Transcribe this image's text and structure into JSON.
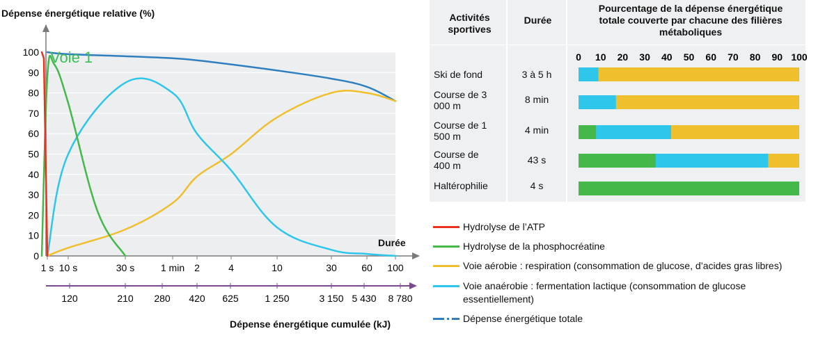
{
  "chart_data": [
    {
      "type": "line",
      "title": "",
      "ylabel": "Dépense énergétique relative (%)",
      "xlabel": "Durée",
      "x2label": "Dépense énergétique cumulée (kJ)",
      "ylim": [
        0,
        100
      ],
      "yticks": [
        "0",
        "10",
        "20",
        "30",
        "40",
        "50",
        "60",
        "70",
        "80",
        "90",
        "100"
      ],
      "xticks": [
        "1 s",
        "10 s",
        "30 s",
        "1 min",
        "2",
        "4",
        "10",
        "30",
        "60",
        "100"
      ],
      "x2ticks": [
        "120",
        "210",
        "280",
        "420",
        "625",
        "1 250",
        "3 150",
        "5 430",
        "8 780"
      ],
      "annotation": "Voie 1",
      "grid": true,
      "series": [
        {
          "name": "Hydrolyse de l’ATP",
          "color": "#e8321e",
          "x": [
            "0",
            "0.5 s",
            "1 s"
          ],
          "values": [
            100,
            97,
            0
          ]
        },
        {
          "name": "Hydrolyse de la phosphocréatine",
          "color": "#45b84a",
          "x": [
            "0",
            "1 s",
            "5 s",
            "10 s",
            "20 s",
            "30 s"
          ],
          "values": [
            0,
            88,
            94,
            75,
            22,
            0
          ]
        },
        {
          "name": "Voie aérobie : respiration (consommation de glucose, d’acides gras libres)",
          "color": "#f0bf2e",
          "x": [
            "1 s",
            "10 s",
            "30 s",
            "1 min",
            "2",
            "4",
            "10",
            "30",
            "60",
            "100"
          ],
          "values": [
            0,
            4,
            13,
            26,
            39,
            50,
            68,
            80,
            80,
            76
          ]
        },
        {
          "name": "Voie anaérobie : fermentation lactique (consommation de glucose essentiellement)",
          "color": "#2ec6ea",
          "x": [
            "1 s",
            "10 s",
            "30 s",
            "1 min",
            "2",
            "4",
            "10",
            "30",
            "60",
            "100"
          ],
          "values": [
            0,
            50,
            85,
            80,
            60,
            42,
            14,
            3,
            1,
            0
          ]
        },
        {
          "name": "Dépense énergétique totale",
          "color": "#2f7fc0",
          "x": [
            "1 s",
            "10 s",
            "30 s",
            "1 min",
            "2",
            "4",
            "10",
            "30",
            "60",
            "100"
          ],
          "values": [
            100,
            99,
            98,
            97,
            96,
            94,
            91,
            87,
            83,
            76
          ]
        }
      ]
    },
    {
      "type": "bar",
      "stacked": true,
      "title": "Pourcentage de la dépense énergétique totale couverte par chacune des filières métaboliques",
      "xlim": [
        0,
        100
      ],
      "xticks": [
        "0",
        "10",
        "20",
        "30",
        "40",
        "50",
        "60",
        "70",
        "80",
        "90",
        "100"
      ],
      "categories": [
        "Ski de fond",
        "Course de 3 000 m",
        "Course de 1 500 m",
        "Course de 400 m",
        "Haltérophilie"
      ],
      "durations": [
        "3 à 5 h",
        "8 min",
        "4 min",
        "43 s",
        "4 s"
      ],
      "series": [
        {
          "name": "Hydrolyse de la phosphocréatine",
          "color": "#45b84a",
          "values": [
            0,
            0,
            8,
            35,
            100
          ]
        },
        {
          "name": "Voie anaérobie : fermentation lactique",
          "color": "#2ec6ea",
          "values": [
            9,
            17,
            34,
            51,
            0
          ]
        },
        {
          "name": "Voie aérobie : respiration",
          "color": "#f0bf2e",
          "values": [
            91,
            83,
            58,
            14,
            0
          ]
        }
      ]
    }
  ],
  "table": {
    "col_activity": "Activités sportives",
    "col_duration": "Durée",
    "col_percent": "Pourcentage de la dépense énergétique totale couverte par chacune des filières métaboliques",
    "rows": [
      {
        "activity": "Ski de fond",
        "duration": "3 à 5 h"
      },
      {
        "activity": "Course de 3 000 m",
        "duration": "8 min"
      },
      {
        "activity": "Course de 1 500 m",
        "duration": "4 min"
      },
      {
        "activity": "Course de 400 m",
        "duration": "43 s"
      },
      {
        "activity": "Haltérophilie",
        "duration": "4 s"
      }
    ]
  },
  "legend": [
    {
      "label": "Hydrolyse de l’ATP",
      "color": "#e8321e"
    },
    {
      "label": "Hydrolyse de la phosphocréatine",
      "color": "#45b84a"
    },
    {
      "label": "Voie aérobie : respiration (consommation de glucose, d’acides gras libres)",
      "color": "#f0bf2e"
    },
    {
      "label": "Voie anaérobie : fermentation lactique (consommation de glucose essentiellement)",
      "color": "#2ec6ea"
    },
    {
      "label": "Dépense énergétique totale",
      "color": "#2f7fc0",
      "style": "dash-dot"
    }
  ]
}
